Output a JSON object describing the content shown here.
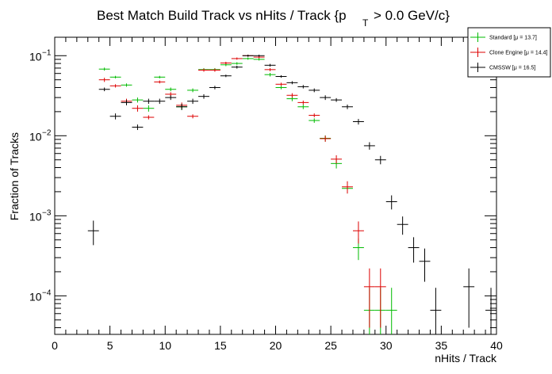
{
  "chart_data": {
    "type": "scatter",
    "title_main": "Best Match Build Track vs nHits / Track {p",
    "title_sub": "T",
    "title_tail": "> 0.0 GeV/c}",
    "xlabel": "nHits / Track",
    "ylabel": "Fraction of Tracks",
    "xlim": [
      0,
      40
    ],
    "ylim": [
      3.3e-05,
      0.17
    ],
    "yscale": "log",
    "grid": false,
    "legend_position": "top-right",
    "x_ticks": [
      "0",
      "5",
      "10",
      "15",
      "20",
      "25",
      "30",
      "35",
      "40"
    ],
    "y_ticks": [
      {
        "base": "10",
        "exp": "−4",
        "value": 0.0001
      },
      {
        "base": "10",
        "exp": "−3",
        "value": 0.001
      },
      {
        "base": "10",
        "exp": "−2",
        "value": 0.01
      },
      {
        "base": "10",
        "exp": "−1",
        "value": 0.1
      }
    ],
    "series": [
      {
        "name": "Standard",
        "mean_label": "[μ = 13.7]",
        "color": "#00bb00",
        "x": [
          4.5,
          5.5,
          6.5,
          7.5,
          8.5,
          9.5,
          10.5,
          11.5,
          12.5,
          13.5,
          14.5,
          15.5,
          16.5,
          17.5,
          18.5,
          19.5,
          20.5,
          21.5,
          22.5,
          23.5,
          24.5,
          25.5,
          26.5,
          27.5,
          28.5,
          29.5,
          30.5
        ],
        "y": [
          0.068,
          0.054,
          0.043,
          0.028,
          0.022,
          0.054,
          0.038,
          0.023,
          0.037,
          0.067,
          0.067,
          0.077,
          0.08,
          0.092,
          0.09,
          0.058,
          0.04,
          0.029,
          0.023,
          0.0155,
          0.0093,
          0.0045,
          0.0022,
          0.0004,
          6.6e-05,
          6.6e-05,
          6.6e-05
        ],
        "yerr": [
          0.003,
          0.002,
          0.002,
          0.002,
          0.002,
          0.002,
          0.002,
          0.002,
          0.002,
          0.003,
          0.003,
          0.003,
          0.003,
          0.003,
          0.003,
          0.003,
          0.002,
          0.002,
          0.0015,
          0.001,
          0.0008,
          0.0006,
          0.0003,
          0.00012,
          6e-05,
          6e-05,
          6e-05
        ]
      },
      {
        "name": "Clone Engine",
        "mean_label": "[μ = 14.4]",
        "color": "#dd0000",
        "x": [
          4.5,
          5.5,
          6.5,
          7.5,
          8.5,
          9.5,
          10.5,
          11.5,
          12.5,
          13.5,
          14.5,
          15.5,
          16.5,
          17.5,
          18.5,
          19.5,
          20.5,
          21.5,
          22.5,
          23.5,
          24.5,
          25.5,
          26.5,
          27.5,
          28.5,
          29.5
        ],
        "y": [
          0.05,
          0.042,
          0.027,
          0.022,
          0.017,
          0.047,
          0.033,
          0.024,
          0.0175,
          0.066,
          0.066,
          0.081,
          0.092,
          0.1,
          0.096,
          0.067,
          0.044,
          0.032,
          0.026,
          0.018,
          0.0092,
          0.0051,
          0.0023,
          0.00065,
          0.00013,
          0.00013
        ],
        "yerr": [
          0.003,
          0.002,
          0.002,
          0.002,
          0.001,
          0.002,
          0.002,
          0.002,
          0.001,
          0.003,
          0.003,
          0.003,
          0.003,
          0.003,
          0.003,
          0.003,
          0.002,
          0.002,
          0.0015,
          0.001,
          0.0008,
          0.0006,
          0.0004,
          0.0002,
          9e-05,
          9e-05
        ]
      },
      {
        "name": "CMSSW",
        "mean_label": "[μ = 16.5]",
        "color": "#000000",
        "x": [
          3.5,
          4.5,
          5.5,
          6.5,
          7.5,
          8.5,
          9.5,
          10.5,
          11.5,
          12.5,
          13.5,
          14.5,
          15.5,
          16.5,
          17.5,
          18.5,
          19.5,
          20.5,
          21.5,
          22.5,
          23.5,
          24.5,
          25.5,
          26.5,
          27.5,
          28.5,
          29.5,
          30.5,
          31.5,
          32.5,
          33.5,
          34.5,
          37.5,
          39.5
        ],
        "y": [
          0.00065,
          0.038,
          0.0175,
          0.026,
          0.0128,
          0.027,
          0.027,
          0.03,
          0.023,
          0.027,
          0.031,
          0.04,
          0.056,
          0.072,
          0.1,
          0.1,
          0.076,
          0.055,
          0.046,
          0.041,
          0.037,
          0.03,
          0.028,
          0.023,
          0.015,
          0.0075,
          0.005,
          0.0015,
          0.00078,
          0.0004,
          0.00027,
          6.6e-05,
          0.00013,
          6.6e-05
        ],
        "yerr": [
          0.00022,
          0.002,
          0.0015,
          0.002,
          0.001,
          0.002,
          0.002,
          0.002,
          0.002,
          0.002,
          0.002,
          0.002,
          0.002,
          0.003,
          0.003,
          0.003,
          0.003,
          0.002,
          0.002,
          0.002,
          0.002,
          0.002,
          0.0015,
          0.0015,
          0.0012,
          0.0008,
          0.0006,
          0.0003,
          0.0002,
          0.00014,
          0.00012,
          6e-05,
          9e-05,
          6e-05
        ]
      }
    ]
  }
}
